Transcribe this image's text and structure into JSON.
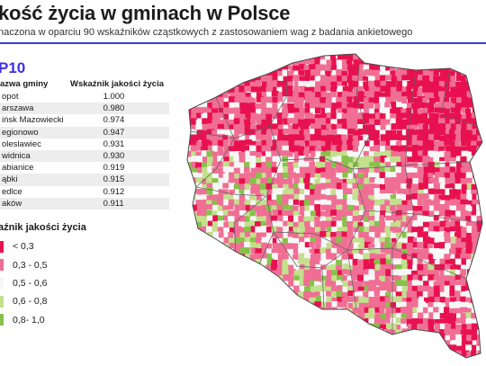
{
  "title": "kość życia w gminach w Polsce",
  "subtitle": "naczona w oparciu 90 wskaźników cząstkowych z zastosowaniem wag z badania ankietowego",
  "top10": {
    "heading": "P10",
    "col_name": "azwa gminy",
    "col_index": "Wskaźnik jakości życia",
    "rows": [
      {
        "name": "opot",
        "value": "1.000"
      },
      {
        "name": "arszawa",
        "value": "0.980"
      },
      {
        "name": "ińsk Mazowiecki",
        "value": "0.974"
      },
      {
        "name": "egionowo",
        "value": "0.947"
      },
      {
        "name": "oleslawiec",
        "value": "0.931"
      },
      {
        "name": "widnica",
        "value": "0.930"
      },
      {
        "name": "abianice",
        "value": "0.919"
      },
      {
        "name": "ąbki",
        "value": "0.915"
      },
      {
        "name": "edlce",
        "value": "0.912"
      },
      {
        "name": "aków",
        "value": "0.911"
      }
    ]
  },
  "legend": {
    "title": "aźnik jakości życia",
    "items": [
      {
        "label": "< 0,3",
        "color": "#e8114f"
      },
      {
        "label": "0,3 - 0,5",
        "color": "#f06e94"
      },
      {
        "label": "0,5 - 0,6",
        "color": "#f7f7f7"
      },
      {
        "label": "0,6 - 0,8",
        "color": "#c3e08c"
      },
      {
        "label": "0,8- 1,0",
        "color": "#86c24a"
      }
    ]
  },
  "colors": {
    "accent": "#3c2fe6",
    "border": "#5a5a5a"
  }
}
